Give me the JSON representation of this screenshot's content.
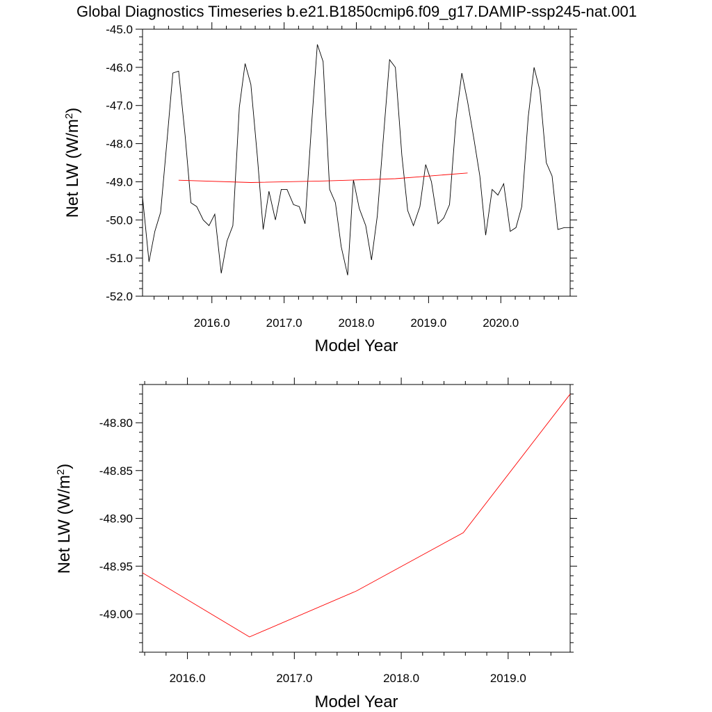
{
  "chart_data": [
    {
      "type": "line",
      "title": "Global Diagnostics Timeseries b.e21.B1850cmip6.f09_g17.DAMIP-ssp245-nat.001",
      "xlabel": "Model Year",
      "ylabel_main": "Net LW (W/m",
      "ylabel_sup": "2",
      "ylabel_tail": ")",
      "xlim": [
        2015.04,
        2020.96
      ],
      "ylim": [
        -52.0,
        -45.0
      ],
      "xticks": [
        2016.0,
        2017.0,
        2018.0,
        2019.0,
        2020.0
      ],
      "xtick_labels": [
        "2016.0",
        "2017.0",
        "2018.0",
        "2019.0",
        "2020.0"
      ],
      "yticks": [
        -52.0,
        -51.0,
        -50.0,
        -49.0,
        -48.0,
        -47.0,
        -46.0,
        -45.0
      ],
      "ytick_labels": [
        "-52.0",
        "-51.0",
        "-50.0",
        "-49.0",
        "-48.0",
        "-47.0",
        "-46.0",
        "-45.0"
      ],
      "series": [
        {
          "color": "#000000",
          "x": [
            2015.04,
            2015.13,
            2015.21,
            2015.29,
            2015.38,
            2015.46,
            2015.54,
            2015.63,
            2015.71,
            2015.79,
            2015.88,
            2015.96,
            2016.04,
            2016.13,
            2016.21,
            2016.29,
            2016.38,
            2016.46,
            2016.54,
            2016.63,
            2016.71,
            2016.79,
            2016.88,
            2016.96,
            2017.04,
            2017.13,
            2017.21,
            2017.29,
            2017.38,
            2017.46,
            2017.54,
            2017.63,
            2017.71,
            2017.79,
            2017.88,
            2017.96,
            2018.04,
            2018.13,
            2018.21,
            2018.29,
            2018.38,
            2018.46,
            2018.54,
            2018.63,
            2018.71,
            2018.79,
            2018.88,
            2018.96,
            2019.04,
            2019.13,
            2019.21,
            2019.29,
            2019.38,
            2019.46,
            2019.54,
            2019.63,
            2019.71,
            2019.79,
            2019.88,
            2019.96,
            2020.04,
            2020.13,
            2020.21,
            2020.29,
            2020.38,
            2020.46,
            2020.54,
            2020.63,
            2020.71,
            2020.79,
            2020.88,
            2020.96
          ],
          "y": [
            -49.4,
            -51.1,
            -50.3,
            -49.8,
            -47.9,
            -46.15,
            -46.1,
            -47.8,
            -49.55,
            -49.65,
            -50.0,
            -50.15,
            -49.85,
            -51.4,
            -50.55,
            -50.15,
            -47.05,
            -45.9,
            -46.45,
            -48.35,
            -50.25,
            -49.25,
            -50.0,
            -49.2,
            -49.2,
            -49.6,
            -49.65,
            -50.1,
            -47.5,
            -45.4,
            -45.85,
            -49.2,
            -49.55,
            -50.7,
            -51.45,
            -48.95,
            -49.7,
            -50.15,
            -51.05,
            -49.9,
            -47.7,
            -45.8,
            -46.0,
            -48.3,
            -49.75,
            -50.15,
            -49.65,
            -48.55,
            -49.0,
            -50.1,
            -49.95,
            -49.6,
            -47.35,
            -46.15,
            -46.9,
            -47.9,
            -48.85,
            -50.4,
            -49.2,
            -49.35,
            -49.05,
            -50.3,
            -50.2,
            -49.65,
            -47.3,
            -46.0,
            -46.6,
            -48.5,
            -48.85,
            -50.25,
            -50.2,
            -50.2
          ]
        },
        {
          "color": "#ff0000",
          "x": [
            2015.54,
            2016.54,
            2017.54,
            2018.54,
            2019.54
          ],
          "y": [
            -48.96,
            -49.02,
            -48.98,
            -48.92,
            -48.77
          ]
        }
      ]
    },
    {
      "type": "line",
      "xlabel": "Model Year",
      "ylabel_main": "Net LW (W/m",
      "ylabel_sup": "2",
      "ylabel_tail": ")",
      "xlim": [
        2015.58,
        2019.58
      ],
      "ylim": [
        -49.04,
        -48.76
      ],
      "xticks": [
        2016.0,
        2017.0,
        2018.0,
        2019.0
      ],
      "xtick_labels": [
        "2016.0",
        "2017.0",
        "2018.0",
        "2019.0"
      ],
      "yticks": [
        -49.0,
        -48.95,
        -48.9,
        -48.85,
        -48.8
      ],
      "ytick_labels": [
        "-49.00",
        "-48.95",
        "-48.90",
        "-48.85",
        "-48.80"
      ],
      "series": [
        {
          "color": "#ff0000",
          "x": [
            2015.58,
            2016.58,
            2017.58,
            2018.58,
            2019.58
          ],
          "y": [
            -48.957,
            -49.024,
            -48.976,
            -48.915,
            -48.77
          ]
        }
      ]
    }
  ]
}
